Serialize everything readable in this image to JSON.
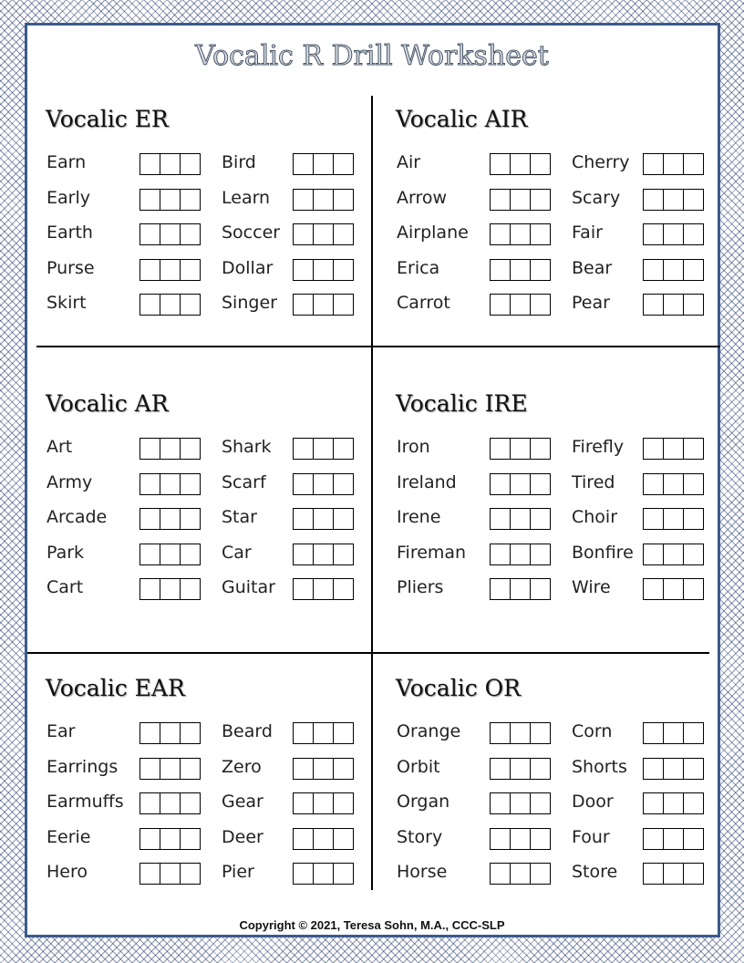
{
  "title": "Vocalic R Drill Worksheet",
  "sections": [
    {
      "heading": "Vocalic ER",
      "col1": [
        "Earn",
        "Early",
        "Earth",
        "Purse",
        "Skirt"
      ],
      "col2": [
        "Bird",
        "Learn",
        "Soccer",
        "Dollar",
        "Singer"
      ]
    },
    {
      "heading": "Vocalic AIR",
      "col1": [
        "Air",
        "Arrow",
        "Airplane",
        "Erica",
        "Carrot"
      ],
      "col2": [
        "Cherry",
        "Scary",
        "Fair",
        "Bear",
        "Pear"
      ]
    },
    {
      "heading": "Vocalic AR",
      "col1": [
        "Art",
        "Army",
        "Arcade",
        "Park",
        "Cart"
      ],
      "col2": [
        "Shark",
        "Scarf",
        "Star",
        "Car",
        "Guitar"
      ]
    },
    {
      "heading": "Vocalic IRE",
      "col1": [
        "Iron",
        "Ireland",
        "Irene",
        "Fireman",
        "Pliers"
      ],
      "col2": [
        "Firefly",
        "Tired",
        "Choir",
        "Bonfire",
        "Wire"
      ]
    },
    {
      "heading": "Vocalic EAR",
      "col1": [
        "Ear",
        "Earrings",
        "Earmuffs",
        "Eerie",
        "Hero"
      ],
      "col2": [
        "Beard",
        "Zero",
        "Gear",
        "Deer",
        "Pier"
      ]
    },
    {
      "heading": "Vocalic OR",
      "col1": [
        "Orange",
        "Orbit",
        "Organ",
        "Story",
        "Horse"
      ],
      "col2": [
        "Corn",
        "Shorts",
        "Door",
        "Four",
        "Store"
      ]
    }
  ],
  "copyright": "Copyright © 2021, Teresa Sohn, M.A., CCC-SLP"
}
